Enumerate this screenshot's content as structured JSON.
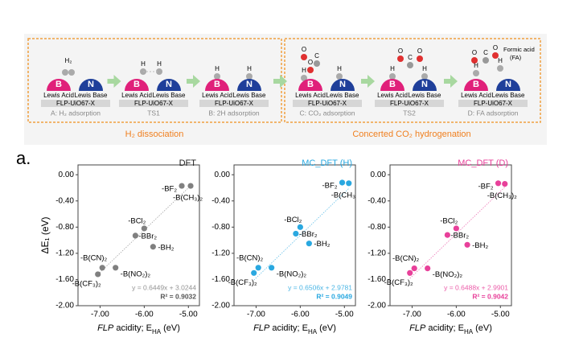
{
  "panel_label": "a.",
  "scheme": {
    "stages": [
      {
        "acid": "B",
        "acid_label": "Lewis Acid",
        "base": "N",
        "base_label": "Lewis Base",
        "support": "FLP-UiO67-X",
        "caption": "A: H₂ adsorption",
        "atoms": [
          "H₂"
        ]
      },
      {
        "acid": "B",
        "acid_label": "Lewis Acid",
        "base": "N",
        "base_label": "Lewis Base",
        "support": "FLP-UiO67-X",
        "caption": "TS1",
        "atoms": [
          "H",
          "H"
        ]
      },
      {
        "acid": "B",
        "acid_label": "Lewis Acid",
        "base": "N",
        "base_label": "Lewis Base",
        "support": "FLP-UiO67-X",
        "caption": "B: 2H adsorption",
        "atoms": [
          "H",
          "H"
        ]
      },
      {
        "acid": "B",
        "acid_label": "Lewis Acid",
        "base": "N",
        "base_label": "Lewis Base",
        "support": "FLP-UiO67-X",
        "caption": "C: CO₂ adsorption",
        "atoms": [
          "O",
          "C",
          "O",
          "H",
          "H"
        ]
      },
      {
        "acid": "B",
        "acid_label": "Lewis Acid",
        "base": "N",
        "base_label": "Lewis Base",
        "support": "FLP-UiO67-X",
        "caption": "TS2",
        "atoms": [
          "O",
          "C",
          "O",
          "H",
          "H"
        ]
      },
      {
        "acid": "B",
        "acid_label": "Lewis Acid",
        "base": "N",
        "base_label": "Lewis Base",
        "support": "FLP-UiO67-X",
        "caption": "D: FA adsorption",
        "atoms": [
          "O",
          "C",
          "O",
          "H",
          "H"
        ]
      }
    ],
    "fa_label": [
      "Formic acid",
      "(FA)"
    ],
    "sections": [
      "H₂ dissociation",
      "Concerted CO₂ hydrogenation"
    ]
  },
  "chart_data": [
    {
      "type": "scatter",
      "title": "DFT",
      "title_color": "#222222",
      "color": "#808080",
      "r2_color": "#555555",
      "ylabel": "ΔE₁ (eV)",
      "xlabel": [
        "FLP",
        " acidity; E",
        "HA",
        " (eV)"
      ],
      "labels": [
        "-BF₂",
        "-B(CH₃)₂",
        "-BCl₂",
        "-BBr₂",
        "-BH₂",
        "-B(CN)₂",
        "-B(NO₂)₂",
        "-B(CF₃)₂"
      ],
      "x": [
        -5.15,
        -4.95,
        -6.0,
        -6.2,
        -5.8,
        -6.95,
        -6.65,
        -7.05
      ],
      "values": [
        -0.17,
        -0.17,
        -0.82,
        -0.93,
        -1.1,
        -1.42,
        -1.42,
        -1.52
      ],
      "fit": {
        "slope": 0.6449,
        "intercept": 3.0244,
        "label": "y = 0.6449x + 3.0244"
      },
      "r2_label": "R² = 0.9032",
      "xlim": [
        -7.5,
        -4.75
      ],
      "ylim": [
        -2.0,
        0.15
      ],
      "xticks": [
        {
          "value": -7,
          "label": "-7.00"
        },
        {
          "value": -6,
          "label": "-6.00"
        },
        {
          "value": -5,
          "label": "-5.00"
        }
      ],
      "yticks": [
        {
          "value": 0,
          "label": "0.00"
        },
        {
          "value": -0.4,
          "label": "-0.40"
        },
        {
          "value": -0.8,
          "label": "-0.80"
        },
        {
          "value": -1.2,
          "label": "-1.20"
        },
        {
          "value": -1.6,
          "label": "-1.60"
        },
        {
          "value": -2.0,
          "label": "-2.00"
        }
      ]
    },
    {
      "type": "scatter",
      "title": "MC_DFT (H)",
      "title_color": "#29a8e0",
      "color": "#29a8e0",
      "r2_color": "#29a8e0",
      "xlabel": [
        "FLP",
        " acidity; E",
        "HA",
        " (eV)"
      ],
      "labels": [
        "-BF₂",
        "-B(CH₃",
        "-BCl₂",
        "-BBr₂",
        "-BH₂",
        "-B(CN)₂",
        "-B(NO₂)₂",
        "-B(CF₃)₂"
      ],
      "x": [
        -5.05,
        -4.9,
        -6.0,
        -6.1,
        -5.8,
        -6.95,
        -6.65,
        -7.05
      ],
      "values": [
        -0.12,
        -0.13,
        -0.8,
        -0.9,
        -1.05,
        -1.42,
        -1.42,
        -1.5
      ],
      "fit": {
        "slope": 0.6506,
        "intercept": 2.9781,
        "label": "y = 0.6506x + 2.9781"
      },
      "r2_label": "R² = 0.9049",
      "xlim": [
        -7.5,
        -4.75
      ],
      "ylim": [
        -2.0,
        0.15
      ],
      "xticks": [
        {
          "value": -7,
          "label": "-7.00"
        },
        {
          "value": -6,
          "label": "-6.00"
        },
        {
          "value": -5,
          "label": "-5.00"
        }
      ],
      "yticks": [
        {
          "value": 0,
          "label": "0.00"
        },
        {
          "value": -0.4,
          "label": "-0.40"
        },
        {
          "value": -0.8,
          "label": "-0.80"
        },
        {
          "value": -1.2,
          "label": "-1.20"
        },
        {
          "value": -1.6,
          "label": "-1.60"
        },
        {
          "value": -2.0,
          "label": "-2.00"
        }
      ]
    },
    {
      "type": "scatter",
      "title": "MC_DFT (D)",
      "title_color": "#e8409a",
      "color": "#e8409a",
      "r2_color": "#e8409a",
      "xlabel": [
        "FLP",
        " acidity; E",
        "HA",
        " (eV)"
      ],
      "labels": [
        "-BF₂",
        "-B(CH₃)₂",
        "-BCl₂",
        "-BBr₂",
        "-BH₂",
        "-B(CN)₂",
        "-B(NO₂)₂",
        "-B(CF₃)₂"
      ],
      "x": [
        -5.05,
        -4.9,
        -6.0,
        -6.2,
        -5.75,
        -6.95,
        -6.65,
        -7.05
      ],
      "values": [
        -0.13,
        -0.14,
        -0.82,
        -0.92,
        -1.07,
        -1.43,
        -1.43,
        -1.5
      ],
      "fit": {
        "slope": 0.6488,
        "intercept": 2.9901,
        "label": "y = 0.6488x + 2.9901"
      },
      "r2_label": "R² = 0.9042",
      "xlim": [
        -7.5,
        -4.75
      ],
      "ylim": [
        -2.0,
        0.15
      ],
      "xticks": [
        {
          "value": -7,
          "label": "-7.00"
        },
        {
          "value": -6,
          "label": "-6.00"
        },
        {
          "value": -5,
          "label": "-5.00"
        }
      ],
      "yticks": [
        {
          "value": 0,
          "label": "0.00"
        },
        {
          "value": -0.4,
          "label": "-0.40"
        },
        {
          "value": -0.8,
          "label": "-0.80"
        },
        {
          "value": -1.2,
          "label": "-1.20"
        },
        {
          "value": -1.6,
          "label": "-1.60"
        },
        {
          "value": -2.0,
          "label": "-2.00"
        }
      ]
    }
  ]
}
